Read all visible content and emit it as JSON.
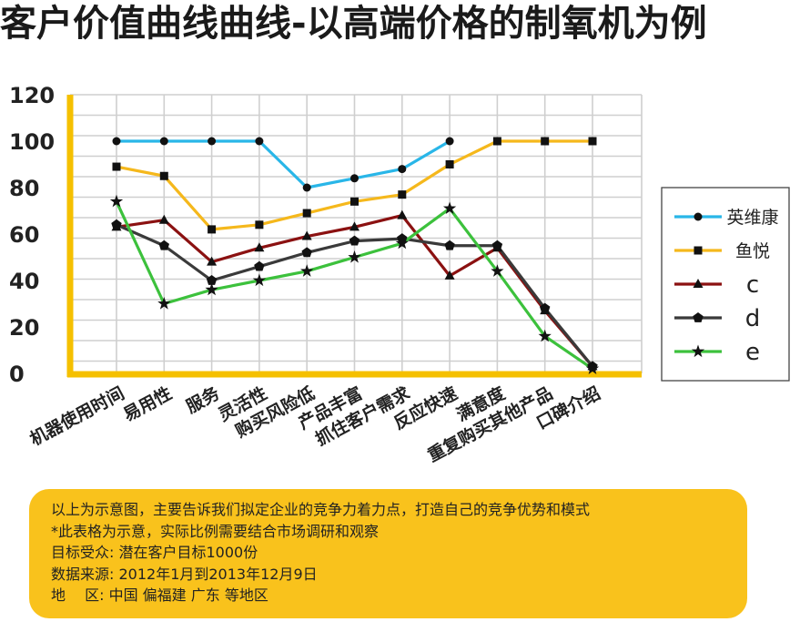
{
  "title": "客户价值曲线曲线-以高端价格的制氧机为例",
  "chart_data": {
    "type": "line",
    "title": "客户价值曲线曲线-以高端价格的制氧机为例",
    "categories": [
      "机器使用时间",
      "易用性",
      "服务",
      "灵活性",
      "购买风险低",
      "产品丰富",
      "抓住客户需求",
      "反应快速",
      "满意度",
      "重复购买其他产品",
      "口碑介绍"
    ],
    "ylim": [
      0,
      120
    ],
    "yticks": [
      0,
      20,
      40,
      60,
      80,
      100,
      120
    ],
    "grid": true,
    "legend_position": "right",
    "series": [
      {
        "name": "英维康",
        "color": "#29b6e8",
        "marker": "circle",
        "values": [
          100,
          100,
          100,
          100,
          80,
          84,
          88,
          100,
          null,
          null,
          null
        ]
      },
      {
        "name": "鱼悦",
        "color": "#f5b81c",
        "marker": "square",
        "values": [
          89,
          85,
          62,
          64,
          69,
          74,
          77,
          90,
          100,
          100,
          100
        ]
      },
      {
        "name": "c",
        "color": "#8b1111",
        "marker": "triangle",
        "values": [
          63,
          66,
          48,
          54,
          59,
          63,
          68,
          42,
          54,
          27,
          3
        ]
      },
      {
        "name": "d",
        "color": "#3a3a3a",
        "marker": "pentagon",
        "values": [
          64,
          55,
          40,
          46,
          52,
          57,
          58,
          55,
          55,
          28,
          3
        ]
      },
      {
        "name": "e",
        "color": "#3cc13c",
        "marker": "star",
        "values": [
          74,
          30,
          36,
          40,
          44,
          50,
          56,
          71,
          44,
          16,
          2
        ]
      }
    ]
  },
  "notes": [
    "以上为示意图，主要告诉我们拟定企业的竞争力着力点，打造自己的竞争优势和模式",
    "*此表格为示意，实际比例需要结合市场调研和观察",
    "目标受众: 潜在客户目标1000份",
    "数据来源: 2012年1月到2013年12月9日",
    "地　 区: 中国 偏福建 广东 等地区"
  ]
}
